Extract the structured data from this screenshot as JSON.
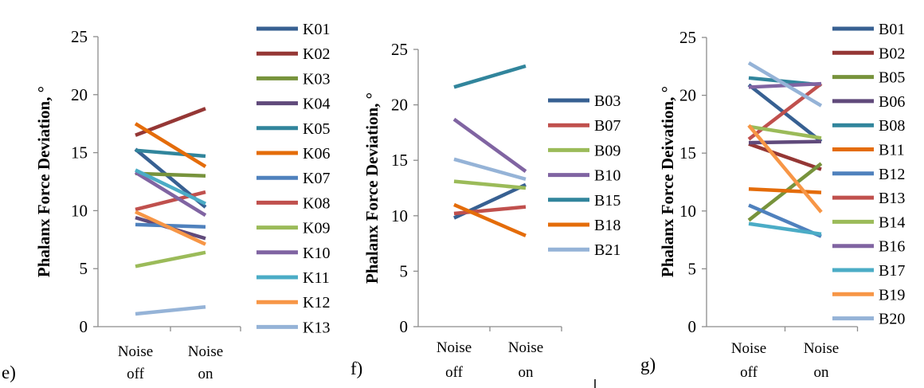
{
  "chart_data": [
    {
      "panel_label": "e)",
      "type": "line",
      "categories": [
        "Noise off",
        "Noise on"
      ],
      "category_lines": [
        [
          "Noise",
          "off"
        ],
        [
          "Noise",
          "on"
        ]
      ],
      "ylabel": "Phalanx Force Deviation, °",
      "ylim": [
        0,
        25
      ],
      "yticks": [
        "0",
        "5",
        "10",
        "15",
        "20",
        "25"
      ],
      "legend_position": "right",
      "series": [
        {
          "name": "K01",
          "values": [
            15.3,
            10.3
          ],
          "color": "#376092"
        },
        {
          "name": "K02",
          "values": [
            16.5,
            18.8
          ],
          "color": "#953735"
        },
        {
          "name": "K03",
          "values": [
            13.2,
            13.0
          ],
          "color": "#77933c"
        },
        {
          "name": "K04",
          "values": [
            9.4,
            7.6
          ],
          "color": "#604a7b"
        },
        {
          "name": "K05",
          "values": [
            15.2,
            14.7
          ],
          "color": "#31859c"
        },
        {
          "name": "K06",
          "values": [
            17.5,
            13.8
          ],
          "color": "#e46c0a"
        },
        {
          "name": "K07",
          "values": [
            8.8,
            8.6
          ],
          "color": "#4f81bd"
        },
        {
          "name": "K08",
          "values": [
            10.1,
            11.6
          ],
          "color": "#c0504d"
        },
        {
          "name": "K09",
          "values": [
            5.2,
            6.4
          ],
          "color": "#9bbb59"
        },
        {
          "name": "K10",
          "values": [
            13.3,
            9.6
          ],
          "color": "#8064a2"
        },
        {
          "name": "K11",
          "values": [
            13.5,
            10.6
          ],
          "color": "#4bacc6"
        },
        {
          "name": "K12",
          "values": [
            9.9,
            7.1
          ],
          "color": "#f79646"
        },
        {
          "name": "K13",
          "values": [
            1.1,
            1.7
          ],
          "color": "#95b3d7"
        }
      ]
    },
    {
      "panel_label": "f)",
      "type": "line",
      "categories": [
        "Noise off",
        "Noise on"
      ],
      "category_lines": [
        [
          "Noise",
          "off"
        ],
        [
          "Noise",
          "on"
        ]
      ],
      "ylabel": "Phalanx Force Deviation, °",
      "ylim": [
        0,
        25
      ],
      "yticks": [
        "0",
        "5",
        "10",
        "15",
        "20",
        "25"
      ],
      "legend_position": "right",
      "series": [
        {
          "name": "B03",
          "values": [
            9.8,
            12.8
          ],
          "color": "#376092"
        },
        {
          "name": "B07",
          "values": [
            10.2,
            10.8
          ],
          "color": "#c0504d"
        },
        {
          "name": "B09",
          "values": [
            13.1,
            12.5
          ],
          "color": "#9bbb59"
        },
        {
          "name": "B10",
          "values": [
            18.7,
            14.0
          ],
          "color": "#8064a2"
        },
        {
          "name": "B15",
          "values": [
            21.6,
            23.5
          ],
          "color": "#31859c"
        },
        {
          "name": "B18",
          "values": [
            11.0,
            8.2
          ],
          "color": "#e46c0a"
        },
        {
          "name": "B21",
          "values": [
            15.1,
            13.3
          ],
          "color": "#95b3d7"
        }
      ]
    },
    {
      "panel_label": "g)",
      "type": "line",
      "categories": [
        "Noise off",
        "Noise on"
      ],
      "category_lines": [
        [
          "Noise",
          "off"
        ],
        [
          "Noise",
          "on"
        ]
      ],
      "ylabel": "Phalanx Force Deivation, °",
      "ylim": [
        0,
        25
      ],
      "yticks": [
        "0",
        "5",
        "10",
        "15",
        "20",
        "25"
      ],
      "legend_position": "right",
      "series": [
        {
          "name": "B01",
          "values": [
            20.9,
            16.0
          ],
          "color": "#376092"
        },
        {
          "name": "B02",
          "values": [
            15.8,
            13.6
          ],
          "color": "#953735"
        },
        {
          "name": "B05",
          "values": [
            9.2,
            14.1
          ],
          "color": "#77933c"
        },
        {
          "name": "B06",
          "values": [
            15.9,
            16.0
          ],
          "color": "#604a7b"
        },
        {
          "name": "B08",
          "values": [
            21.5,
            20.9
          ],
          "color": "#31859c"
        },
        {
          "name": "B11",
          "values": [
            11.9,
            11.6
          ],
          "color": "#e46c0a"
        },
        {
          "name": "B12",
          "values": [
            10.5,
            7.8
          ],
          "color": "#4f81bd"
        },
        {
          "name": "B13",
          "values": [
            16.2,
            21.0
          ],
          "color": "#c0504d"
        },
        {
          "name": "B14",
          "values": [
            17.3,
            16.3
          ],
          "color": "#9bbb59"
        },
        {
          "name": "B16",
          "values": [
            20.7,
            21.0
          ],
          "color": "#8064a2"
        },
        {
          "name": "B17",
          "values": [
            8.9,
            8.0
          ],
          "color": "#4bacc6"
        },
        {
          "name": "B19",
          "values": [
            17.4,
            9.9
          ],
          "color": "#f79646"
        },
        {
          "name": "B20",
          "values": [
            22.8,
            19.1
          ],
          "color": "#95b3d7"
        }
      ]
    }
  ]
}
